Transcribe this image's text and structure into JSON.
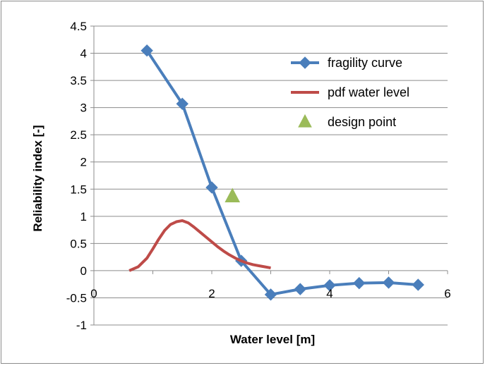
{
  "chart_data": {
    "type": "line",
    "title": "",
    "xlabel": "Water level [m]",
    "ylabel": "Reliability index [-]",
    "xlim": [
      0,
      6
    ],
    "ylim": [
      -1,
      4.5
    ],
    "x_ticks": [
      0,
      2,
      4,
      6
    ],
    "y_ticks": [
      -1,
      -0.5,
      0,
      0.5,
      1,
      1.5,
      2,
      2.5,
      3,
      3.5,
      4,
      4.5
    ],
    "x_tick_labels": [
      "0",
      "2",
      "4",
      "6"
    ],
    "y_tick_labels": [
      "-1",
      "-0.5",
      "0",
      "0.5",
      "1",
      "1.5",
      "2",
      "2.5",
      "3",
      "3.5",
      "4",
      "4.5"
    ],
    "grid": "horizontal",
    "legend_position": "top-right",
    "series": [
      {
        "name": "fragility curve",
        "color": "#4a7ebb",
        "marker": "diamond",
        "x": [
          0.9,
          1.5,
          2.0,
          2.5,
          3.0,
          3.5,
          4.0,
          4.5,
          5.0,
          5.5
        ],
        "y": [
          4.05,
          3.07,
          1.53,
          0.18,
          -0.44,
          -0.34,
          -0.27,
          -0.23,
          -0.22,
          -0.26
        ]
      },
      {
        "name": "pdf water level",
        "color": "#be4b48",
        "marker": "none",
        "x": [
          0.6,
          0.75,
          0.9,
          1.0,
          1.1,
          1.2,
          1.3,
          1.4,
          1.5,
          1.6,
          1.7,
          1.8,
          1.9,
          2.0,
          2.1,
          2.2,
          2.3,
          2.4,
          2.5,
          2.6,
          2.7,
          2.8,
          2.9,
          3.0
        ],
        "y": [
          0.0,
          0.07,
          0.23,
          0.4,
          0.58,
          0.74,
          0.85,
          0.9,
          0.92,
          0.88,
          0.8,
          0.71,
          0.62,
          0.53,
          0.44,
          0.36,
          0.29,
          0.23,
          0.18,
          0.14,
          0.11,
          0.09,
          0.07,
          0.05
        ]
      },
      {
        "name": "design point",
        "color": "#9bbb59",
        "marker": "triangle",
        "x": [
          2.35
        ],
        "y": [
          1.38
        ]
      }
    ]
  }
}
